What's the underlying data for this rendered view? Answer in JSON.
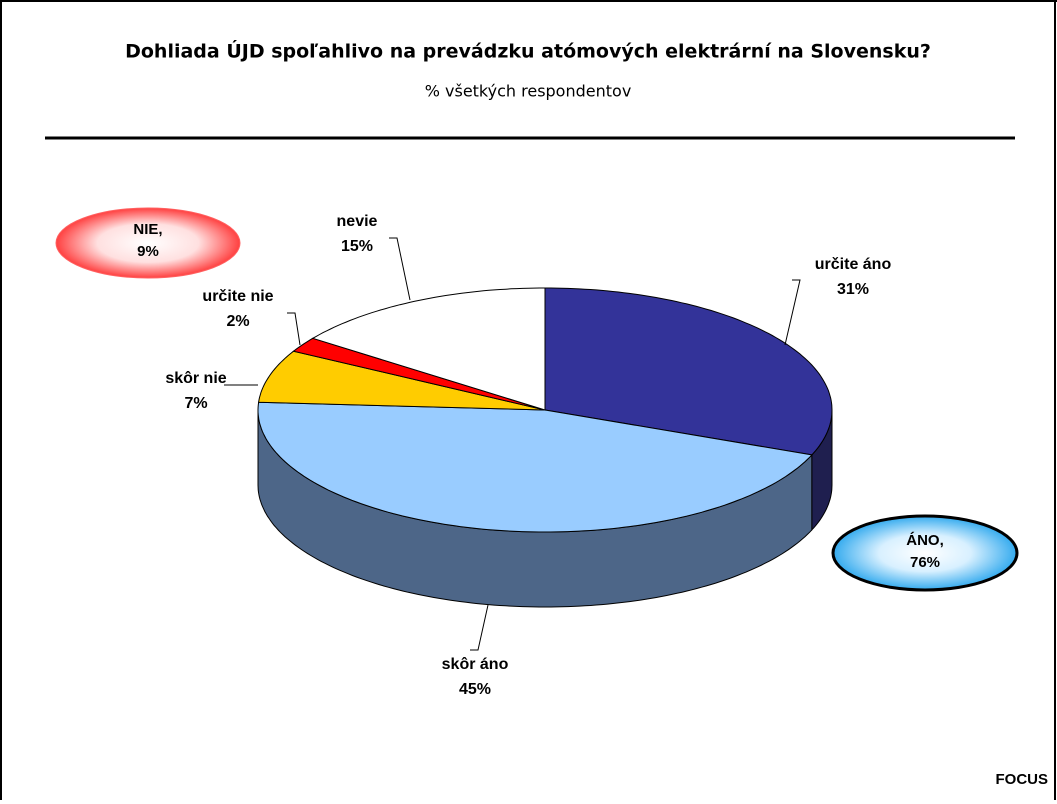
{
  "chart_data": {
    "type": "pie3d",
    "title": "Dohliada ÚJD spoľahlivo na prevádzku atómových elektrární na Slovensku?",
    "subtitle": "% všetkých respondentov",
    "categories": [
      "určite áno",
      "skôr áno",
      "skôr nie",
      "určite nie",
      "nevie"
    ],
    "values": [
      31,
      45,
      7,
      2,
      15
    ],
    "value_labels": [
      "31%",
      "45%",
      "7%",
      "2%",
      "15%"
    ],
    "colors": [
      "#333399",
      "#99ccff",
      "#ffcc00",
      "#ff0000",
      "#ffffff"
    ],
    "side_colors": [
      "#1f1f4f",
      "#4d6688",
      "#8a6e00",
      "#8a0000",
      "#999999"
    ],
    "annotations": [
      [
        "NIE,",
        "9%"
      ],
      [
        "ÁNO,",
        "76%"
      ]
    ],
    "source": "FOCUS"
  }
}
